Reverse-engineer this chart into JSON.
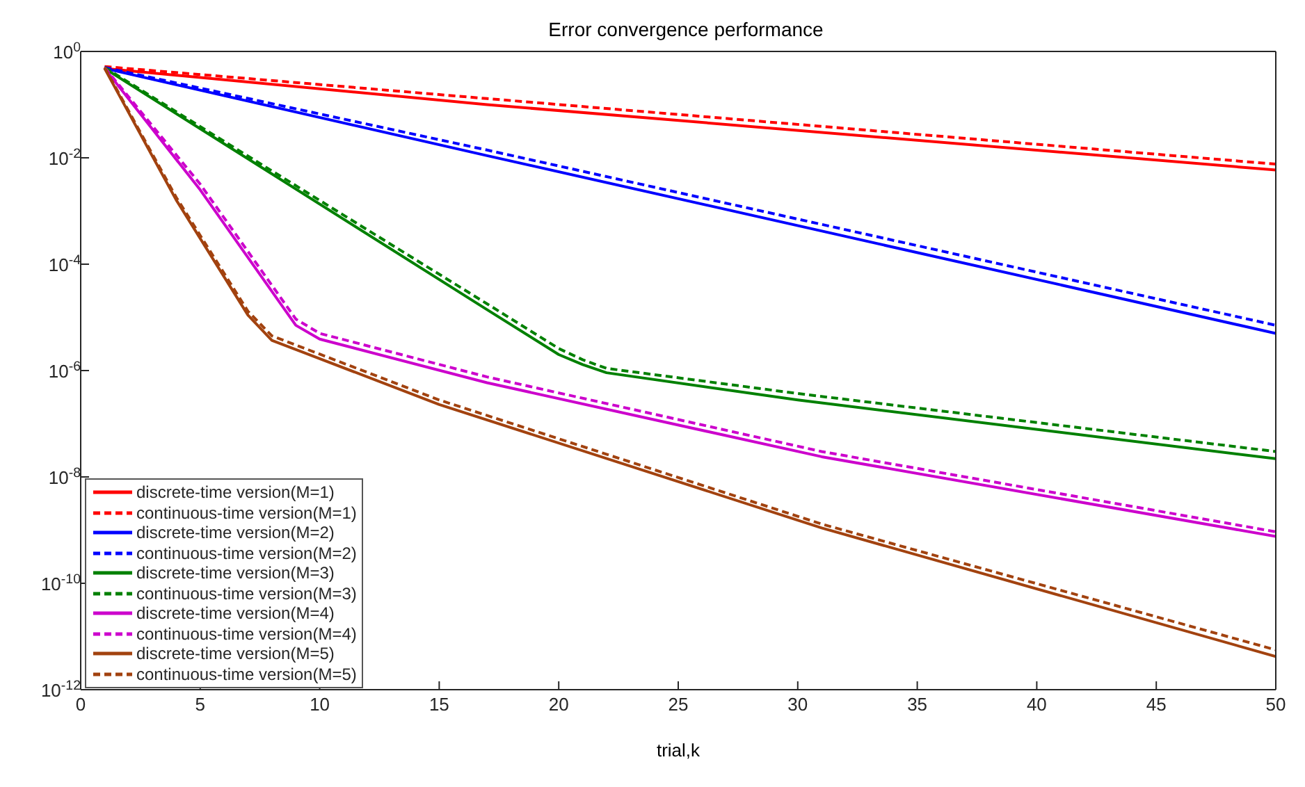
{
  "chart_data": {
    "type": "line",
    "title": "Error convergence performance",
    "xlabel": "trial,k",
    "log": "y",
    "legend": "bottom left",
    "marker": "none",
    "xlim": [
      0,
      50
    ],
    "xticks": [
      0,
      5,
      10,
      15,
      20,
      25,
      30,
      35,
      40,
      45,
      50
    ],
    "ylim": [
      1e-12,
      1
    ],
    "yticks": [
      {
        "value": 1e-12,
        "label": "10$^{-12}$"
      },
      {
        "value": 1e-10,
        "label": "10$^{-10}$"
      },
      {
        "value": 1e-08,
        "label": "10$^{-8}$"
      },
      {
        "value": 1e-06,
        "label": "10$^{-6}$"
      },
      {
        "value": 0.0001,
        "label": "10$^{-4}$"
      },
      {
        "value": 0.01,
        "label": "10$^{-2}$"
      },
      {
        "value": 1,
        "label": "10$^{0}$"
      }
    ],
    "series": [
      {
        "name": "discrete-time version(M=1)",
        "color": "#ff0000",
        "line_style": "solid",
        "x": [
          1,
          17,
          50
        ],
        "values": [
          0.48,
          0.1,
          0.0059
        ]
      },
      {
        "name": "continuous-time version(M=1)",
        "color": "#ff0000",
        "line_style": "dashed",
        "x": [
          1,
          17,
          50
        ],
        "values": [
          0.52,
          0.13,
          0.0076
        ]
      },
      {
        "name": "discrete-time version(M=2)",
        "color": "#0000ff",
        "line_style": "solid",
        "x": [
          1,
          17,
          50
        ],
        "values": [
          0.48,
          0.011,
          5e-06
        ]
      },
      {
        "name": "continuous-time version(M=2)",
        "color": "#0000ff",
        "line_style": "dashed",
        "x": [
          1,
          17,
          50
        ],
        "values": [
          0.5,
          0.014,
          7.1e-06
        ]
      },
      {
        "name": "discrete-time version(M=3)",
        "color": "#008000",
        "line_style": "solid",
        "x": [
          1,
          17,
          20,
          21,
          22,
          30,
          50
        ],
        "values": [
          0.48,
          1.4e-05,
          2e-06,
          1.3e-06,
          9.1e-07,
          2.8e-07,
          2.2e-08
        ]
      },
      {
        "name": "continuous-time version(M=3)",
        "color": "#008000",
        "line_style": "dashed",
        "x": [
          1,
          17,
          20,
          21,
          22,
          30,
          50
        ],
        "values": [
          0.5,
          1.8e-05,
          2.6e-06,
          1.6e-06,
          1.1e-06,
          3.7e-07,
          3e-08
        ]
      },
      {
        "name": "discrete-time version(M=4)",
        "color": "#cc00cc",
        "line_style": "solid",
        "x": [
          1,
          5,
          9,
          10,
          17,
          31,
          50
        ],
        "values": [
          0.48,
          0.0025,
          7.1e-06,
          3.9e-06,
          5.9e-07,
          2.4e-08,
          7.6e-10
        ]
      },
      {
        "name": "continuous-time version(M=4)",
        "color": "#cc00cc",
        "line_style": "dashed",
        "x": [
          1,
          5,
          9,
          10,
          17,
          31,
          50
        ],
        "values": [
          0.5,
          0.0032,
          9.3e-06,
          5e-06,
          7.6e-07,
          3e-08,
          9.3e-10
        ]
      },
      {
        "name": "discrete-time version(M=5)",
        "color": "#a2420f",
        "line_style": "solid",
        "x": [
          1,
          4,
          7,
          8,
          15,
          31,
          50
        ],
        "values": [
          0.48,
          0.0016,
          1.1e-05,
          3.7e-06,
          2.3e-07,
          1.1e-09,
          4.2e-12
        ]
      },
      {
        "name": "continuous-time version(M=5)",
        "color": "#a2420f",
        "line_style": "dashed",
        "x": [
          1,
          4,
          7,
          8,
          15,
          31,
          50
        ],
        "values": [
          0.5,
          0.0018,
          1.3e-05,
          4.5e-06,
          2.8e-07,
          1.3e-09,
          5.6e-12
        ]
      }
    ]
  }
}
